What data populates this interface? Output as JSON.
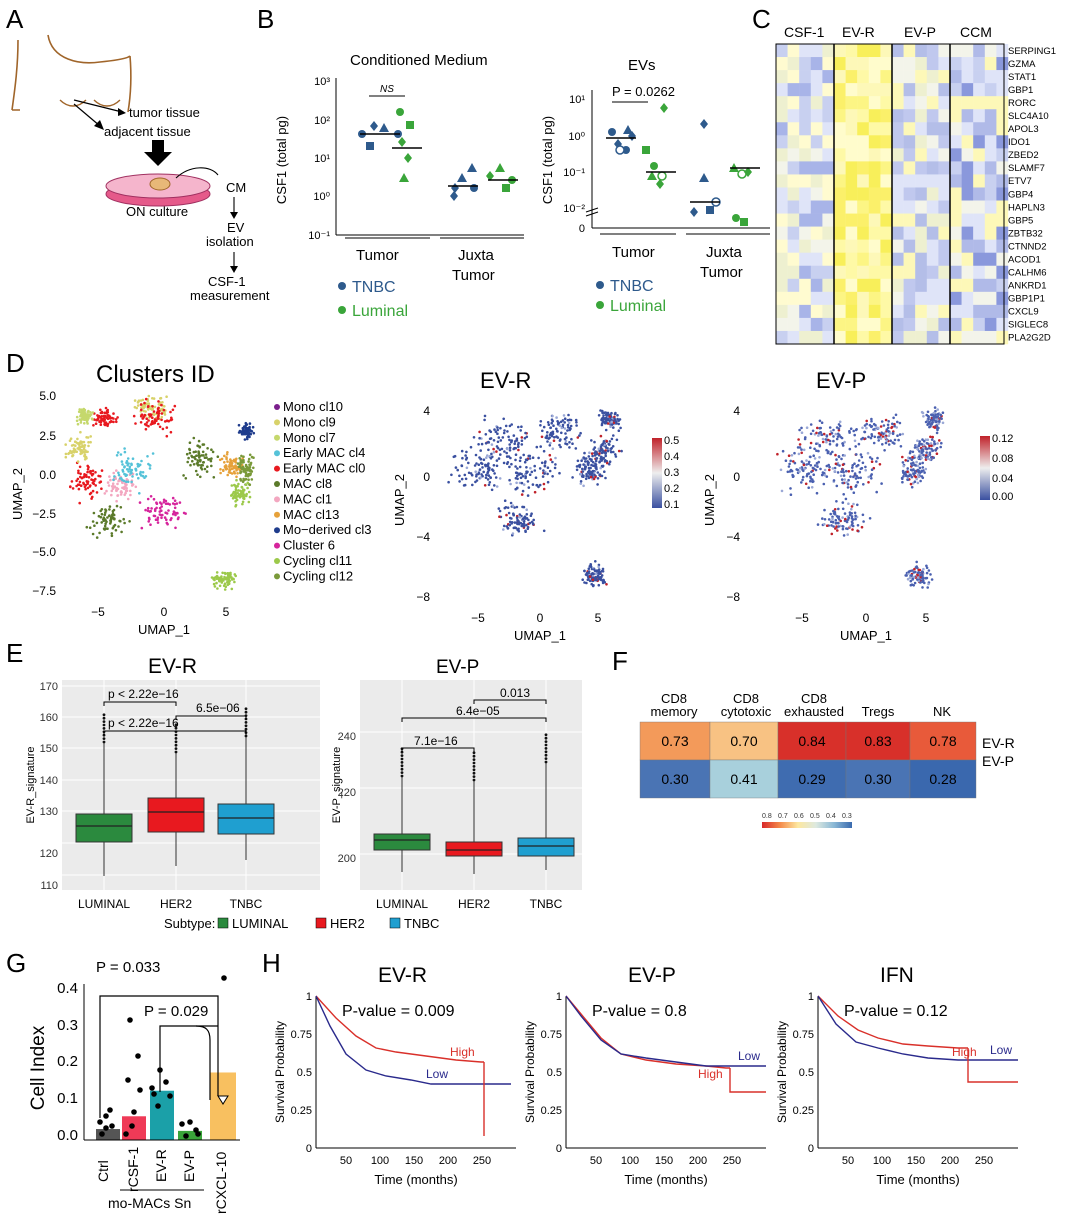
{
  "panel_letters": [
    "A",
    "B",
    "C",
    "D",
    "E",
    "F",
    "G",
    "H"
  ],
  "colors": {
    "tnbc": "#2e5a8c",
    "luminal": "#3aa53a",
    "her2": "#e8191f",
    "tnbc_box": "#1f9fd0",
    "luminal_box": "#2b8a3e"
  },
  "panel_a": {
    "tumor_tissue": "tumor tissue",
    "adjacent_tissue": "adjacent tissue",
    "culture": "ON culture",
    "cm": "CM",
    "ev_line1": "EV",
    "ev_line2": "isolation",
    "csf_line1": "CSF-1",
    "csf_line2": "measurement"
  },
  "panel_b": {
    "left_title": "Conditioned Medium",
    "right_title": "EVs",
    "ylabel": "CSF1 (total pg)",
    "ns": "NS",
    "pvalue": "P = 0.0262",
    "left_yticks": [
      "10³",
      "10²",
      "10¹",
      "10⁰",
      "10⁻¹"
    ],
    "right_yticks": [
      "10¹",
      "10⁰",
      "10⁻¹",
      "10⁻²",
      "0"
    ],
    "group_tumor": "Tumor",
    "group_juxta_1": "Juxta",
    "group_juxta_2": "Tumor",
    "legend_tnbc": "TNBC",
    "legend_luminal": "Luminal"
  },
  "panel_c": {
    "columns": [
      "CSF-1",
      "EV-R",
      "EV-P",
      "CCM"
    ],
    "genes": [
      "SERPING1",
      "GZMA",
      "STAT1",
      "GBP1",
      "RORC",
      "SLC4A10",
      "APOL3",
      "IDO1",
      "ZBED2",
      "SLAMF7",
      "ETV7",
      "GBP4",
      "HAPLN3",
      "GBP5",
      "ZBTB32",
      "CTNND2",
      "ACOD1",
      "CALHM6",
      "ANKRD1",
      "GBP1P1",
      "CXCL9",
      "SIGLEC8",
      "PLA2G2D"
    ]
  },
  "panel_d": {
    "umap_title": "Clusters ID",
    "evr_title": "EV-R",
    "evp_title": "EV-P",
    "xlabel": "UMAP_1",
    "ylabel": "UMAP_2",
    "left_yticks": [
      "5.0",
      "2.5",
      "0.0",
      "−2.5",
      "−5.0",
      "−7.5"
    ],
    "left_xticks": [
      "−5",
      "0",
      "5"
    ],
    "mid_yticks": [
      "4",
      "0",
      "−4",
      "−8"
    ],
    "mid_xticks": [
      "−5",
      "0",
      "5"
    ],
    "evr_scale": [
      "0.5",
      "0.4",
      "0.3",
      "0.2",
      "0.1"
    ],
    "evp_scale": [
      "0.12",
      "0.08",
      "0.04",
      "0.00"
    ],
    "clusters": [
      {
        "name": "Mono cl10",
        "color": "#7b1f8c"
      },
      {
        "name": "Mono cl9",
        "color": "#d8d26a"
      },
      {
        "name": "Mono cl7",
        "color": "#c5d86c"
      },
      {
        "name": "Early MAC cl4",
        "color": "#55c2d8"
      },
      {
        "name": "Early MAC cl0",
        "color": "#e8191f"
      },
      {
        "name": "MAC cl8",
        "color": "#5b7a2a"
      },
      {
        "name": "MAC cl1",
        "color": "#f3a7c0"
      },
      {
        "name": "MAC cl13",
        "color": "#e6a13a"
      },
      {
        "name": "Mo−derived cl3",
        "color": "#1f3c8c"
      },
      {
        "name": "Cluster 6",
        "color": "#d6249c"
      },
      {
        "name": "Cycling cl11",
        "color": "#9cc94a"
      },
      {
        "name": "Cycling cl12",
        "color": "#7a9a3a"
      }
    ]
  },
  "panel_e": {
    "evr_title": "EV-R",
    "evp_title": "EV-P",
    "evr_ylabel": "EV-R_signature",
    "evp_ylabel": "EV-P_signature",
    "evr_yticks": [
      "170",
      "160",
      "150",
      "140",
      "130",
      "120",
      "110"
    ],
    "evp_yticks": [
      "240",
      "220",
      "200"
    ],
    "categories": [
      "LUMINAL",
      "HER2",
      "TNBC"
    ],
    "evr_p1": "p < 2.22e−16",
    "evr_p2": "6.5e−06",
    "evr_p3": "p < 2.22e−16",
    "evp_p1": "0.013",
    "evp_p2": "6.4e−05",
    "evp_p3": "7.1e−16",
    "legend_title": "Subtype:",
    "legend_items": [
      "LUMINAL",
      "HER2",
      "TNBC"
    ]
  },
  "panel_f": {
    "columns": [
      [
        "CD8",
        "memory"
      ],
      [
        "CD8",
        "cytotoxic"
      ],
      [
        "CD8",
        "exhausted"
      ],
      [
        "",
        "Tregs"
      ],
      [
        "",
        "NK"
      ]
    ],
    "rows": [
      "EV-R",
      "EV-P"
    ],
    "values": [
      [
        "0.73",
        "0.70",
        "0.84",
        "0.83",
        "0.78"
      ],
      [
        "0.30",
        "0.41",
        "0.29",
        "0.30",
        "0.28"
      ]
    ],
    "scale": [
      "0.8",
      "0.7",
      "0.6",
      "0.5",
      "0.4",
      "0.3"
    ]
  },
  "panel_g": {
    "ylabel": "Cell Index",
    "yticks": [
      "0.4",
      "0.3",
      "0.2",
      "0.1",
      "0.0"
    ],
    "p1": "P = 0.033",
    "p2": "P = 0.029",
    "categories": [
      "Ctrl",
      "rCSF-1",
      "EV-R",
      "EV-P",
      "rCXCL-10"
    ],
    "group_label": "mo-MACs Sn"
  },
  "panel_h": {
    "ylabel": "Survival Probability",
    "xlabel": "Time (months)",
    "yticks": [
      "1",
      "0.75",
      "0.5",
      "0.25",
      "0"
    ],
    "xticks": [
      "50",
      "100",
      "150",
      "200",
      "250"
    ],
    "plots": [
      {
        "title": "EV-R",
        "pvalue": "P-value = 0.009",
        "high": "High",
        "low": "Low"
      },
      {
        "title": "EV-P",
        "pvalue": "P-value = 0.8",
        "high": "High",
        "low": "Low"
      },
      {
        "title": "IFN",
        "pvalue": "P-value = 0.12",
        "high": "High",
        "low": "Low"
      }
    ]
  }
}
